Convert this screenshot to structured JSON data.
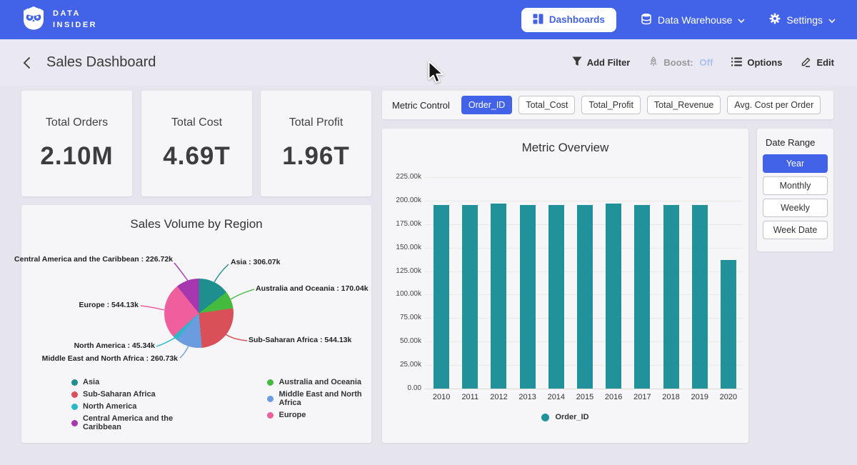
{
  "navbar": {
    "logo_line1": "DATA",
    "logo_line2": "INSIDER",
    "dashboards_label": "Dashboards",
    "data_warehouse_label": "Data Warehouse",
    "settings_label": "Settings"
  },
  "header": {
    "title": "Sales Dashboard",
    "add_filter_label": "Add Filter",
    "boost_label": "Boost:",
    "boost_state": "Off",
    "options_label": "Options",
    "edit_label": "Edit"
  },
  "kpis": [
    {
      "label": "Total Orders",
      "value": "2.10M"
    },
    {
      "label": "Total Cost",
      "value": "4.69T"
    },
    {
      "label": "Total Profit",
      "value": "1.96T"
    }
  ],
  "metric_control": {
    "label": "Metric Control",
    "options": [
      {
        "label": "Order_ID",
        "selected": true
      },
      {
        "label": "Total_Cost",
        "selected": false
      },
      {
        "label": "Total_Profit",
        "selected": false
      },
      {
        "label": "Total_Revenue",
        "selected": false
      },
      {
        "label": "Avg. Cost per Order",
        "selected": false
      }
    ]
  },
  "date_range": {
    "label": "Date Range",
    "options": [
      {
        "label": "Year",
        "selected": true
      },
      {
        "label": "Monthly",
        "selected": false
      },
      {
        "label": "Weekly",
        "selected": false
      },
      {
        "label": "Week Date",
        "selected": false
      }
    ]
  },
  "chart_data": [
    {
      "type": "pie",
      "title": "Sales Volume by Region",
      "unit": "orders",
      "slices": [
        {
          "label": "Asia",
          "value": 306070,
          "display": "Asia : 306.07k",
          "color": "#1f8e8e"
        },
        {
          "label": "Australia and Oceania",
          "value": 170040,
          "display": "Australia and Oceania : 170.04k",
          "color": "#44ba3f"
        },
        {
          "label": "Sub-Saharan Africa",
          "value": 544130,
          "display": "Sub-Saharan Africa : 544.13k",
          "color": "#d95058"
        },
        {
          "label": "Middle East and North Africa",
          "value": 260730,
          "display": "Middle East and North Africa : 260.73k",
          "color": "#6b9ce0"
        },
        {
          "label": "North America",
          "value": 45340,
          "display": "North America : 45.34k",
          "color": "#28b8c8"
        },
        {
          "label": "Europe",
          "value": 544130,
          "display": "Europe : 544.13k",
          "color": "#ef5f9d"
        },
        {
          "label": "Central America and the Caribbean",
          "value": 226720,
          "display": "Central America and the Caribbean : 226.72k",
          "color": "#a737ae"
        }
      ],
      "legend_columns": [
        [
          0,
          2,
          4,
          6
        ],
        [
          1,
          3,
          5
        ]
      ],
      "legend_position": "bottom"
    },
    {
      "type": "bar",
      "title": "Metric Overview",
      "series_name": "Order_ID",
      "categories": [
        "2010",
        "2011",
        "2012",
        "2013",
        "2014",
        "2015",
        "2016",
        "2017",
        "2018",
        "2019",
        "2020"
      ],
      "values": [
        195500,
        195500,
        196500,
        195500,
        195500,
        195500,
        196500,
        195500,
        195500,
        195500,
        136400
      ],
      "bar_color": "#22929a",
      "ylim": [
        0,
        225000
      ],
      "yticks": [
        "0.00",
        "25.00k",
        "50.00k",
        "75.00k",
        "100.00k",
        "125.00k",
        "150.00k",
        "175.00k",
        "200.00k",
        "225.00k"
      ],
      "grid": true,
      "legend_position": "bottom"
    }
  ]
}
